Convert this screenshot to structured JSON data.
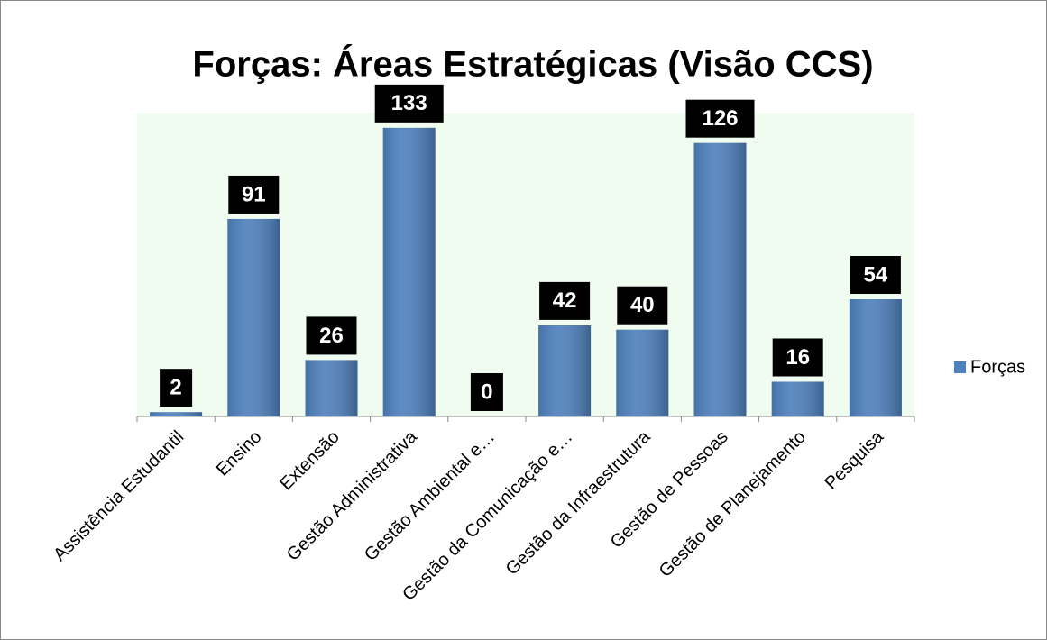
{
  "chart_data": {
    "type": "bar",
    "title": "Forças: Áreas Estratégicas (Visão CCS)",
    "categories": [
      "Assistência Estudantil",
      "Ensino",
      "Extensão",
      "Gestão Administrativa",
      "Gestão Ambiental e…",
      "Gestão da Comunicação e…",
      "Gestão da Infraestrutura",
      "Gestão de Pessoas",
      "Gestão de Planejamento",
      "Pesquisa"
    ],
    "series": [
      {
        "name": "Forças",
        "color": "#4f81bd",
        "values": [
          2,
          91,
          26,
          133,
          0,
          42,
          40,
          126,
          16,
          54
        ]
      }
    ],
    "ylim": [
      0,
      140
    ],
    "legend": "right"
  }
}
